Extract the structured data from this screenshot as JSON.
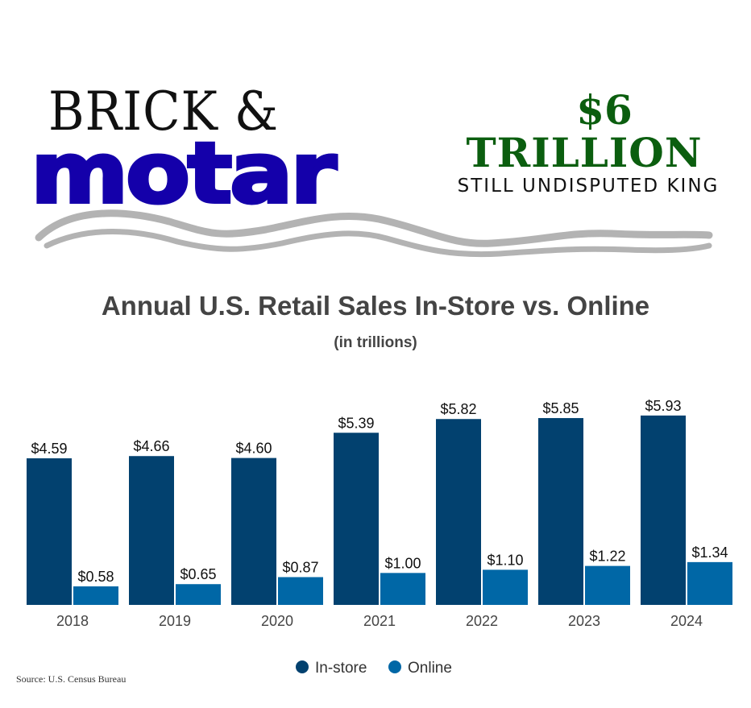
{
  "header": {
    "brand_line1": "BRICK &",
    "brand_line2": "motar",
    "headline_amount": "$6",
    "headline_unit": "TRILLION",
    "headline_tagline": "STILL UNDISPUTED KING"
  },
  "source": "Source: U.S. Census Bureau",
  "colors": {
    "in_store": "#02416f",
    "online": "#0067a6",
    "brand_blue": "#1400aa",
    "money_green": "#0b5e0f"
  },
  "chart_data": {
    "type": "bar",
    "title": "Annual U.S. Retail Sales In-Store vs. Online",
    "subtitle": "(in trillions)",
    "xlabel": "",
    "ylabel": "",
    "ylim": [
      0,
      6
    ],
    "grid": false,
    "legend_position": "bottom",
    "categories": [
      "2018",
      "2019",
      "2020",
      "2021",
      "2022",
      "2023",
      "2024"
    ],
    "series": [
      {
        "name": "In-store",
        "values": [
          4.59,
          4.66,
          4.6,
          5.39,
          5.82,
          5.85,
          5.93
        ],
        "labels": [
          "$4.59",
          "$4.66",
          "$4.60",
          "$5.39",
          "$5.82",
          "$5.85",
          "$5.93"
        ]
      },
      {
        "name": "Online",
        "values": [
          0.58,
          0.65,
          0.87,
          1.0,
          1.1,
          1.22,
          1.34
        ],
        "labels": [
          "$0.58",
          "$0.65",
          "$0.87",
          "$1.00",
          "$1.10",
          "$1.22",
          "$1.34"
        ]
      }
    ]
  }
}
